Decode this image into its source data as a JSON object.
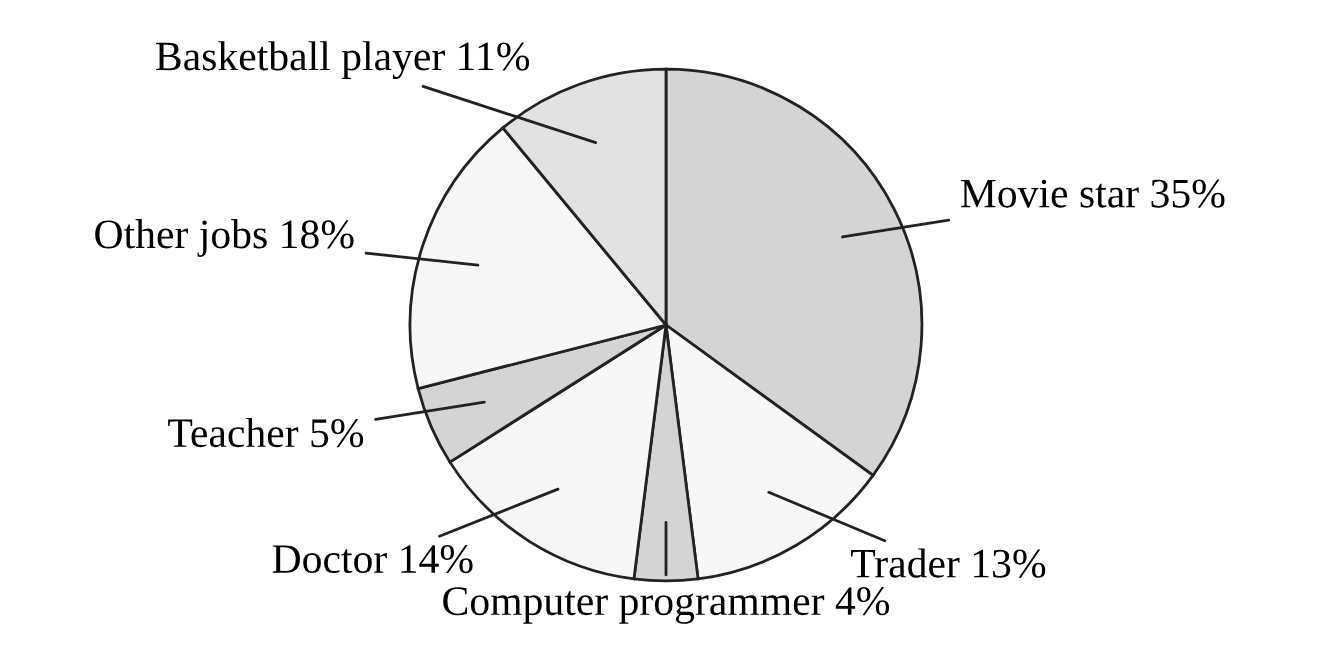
{
  "chart_data": {
    "type": "pie",
    "categories": [
      "Movie star",
      "Trader",
      "Computer programmer",
      "Doctor",
      "Teacher",
      "Other jobs",
      "Basketball player"
    ],
    "values": [
      35,
      13,
      4,
      14,
      5,
      18,
      11
    ],
    "value_labels": [
      "35%",
      "13%",
      "4%",
      "14%",
      "5%",
      "18%",
      "11%"
    ],
    "colors": [
      "#d4d4d4",
      "#f7f7f7",
      "#d4d4d4",
      "#f7f7f7",
      "#d4d4d4",
      "#f7f7f7",
      "#e2e2e2"
    ]
  }
}
